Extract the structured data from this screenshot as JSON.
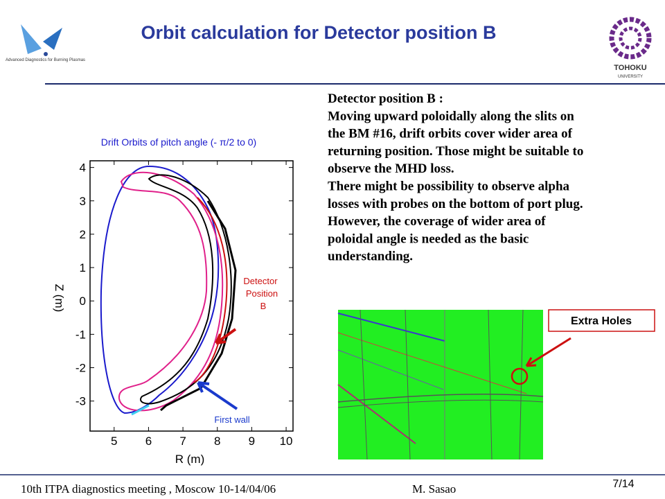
{
  "header": {
    "title": "Orbit calculation for Detector position B",
    "logo_left": "Advanced Diagnostics for Burning Plasmas",
    "logo_right": [
      "TOHOKU",
      "UNIVERSITY"
    ]
  },
  "text_lines": [
    "Detector position B :",
    "Moving upward poloidally along the slits on",
    "the BM #16, drift orbits cover wider area of",
    "returning position. Those might be suitable to",
    "observe the MHD loss.",
    "There might be possibility to observe alpha",
    "losses with probes on the bottom of port plug.",
    "However,  the coverage of wider area of",
    "poloidal angle is needed as the basic",
    "understanding."
  ],
  "plot": {
    "title": "Drift Orbits of pitch angle (-  π/2 to 0)",
    "xlabel": "R (m)",
    "ylabel": "Z (m)",
    "xlim": [
      4.3,
      10.2
    ],
    "ylim": [
      -3.9,
      4.2
    ],
    "xticks": [
      5,
      6,
      7,
      8,
      9,
      10
    ],
    "yticks": [
      4,
      3,
      2,
      1,
      0,
      -1,
      -2,
      -3
    ],
    "annotations": [
      "Detector",
      "Position",
      "B",
      "First wall"
    ]
  },
  "callout": "Extra Holes",
  "footer": {
    "meeting": "10th  ITPA diagnostics meeting , Moscow 10-14/04/06",
    "author": "M. Sasao",
    "page": "7/14"
  }
}
